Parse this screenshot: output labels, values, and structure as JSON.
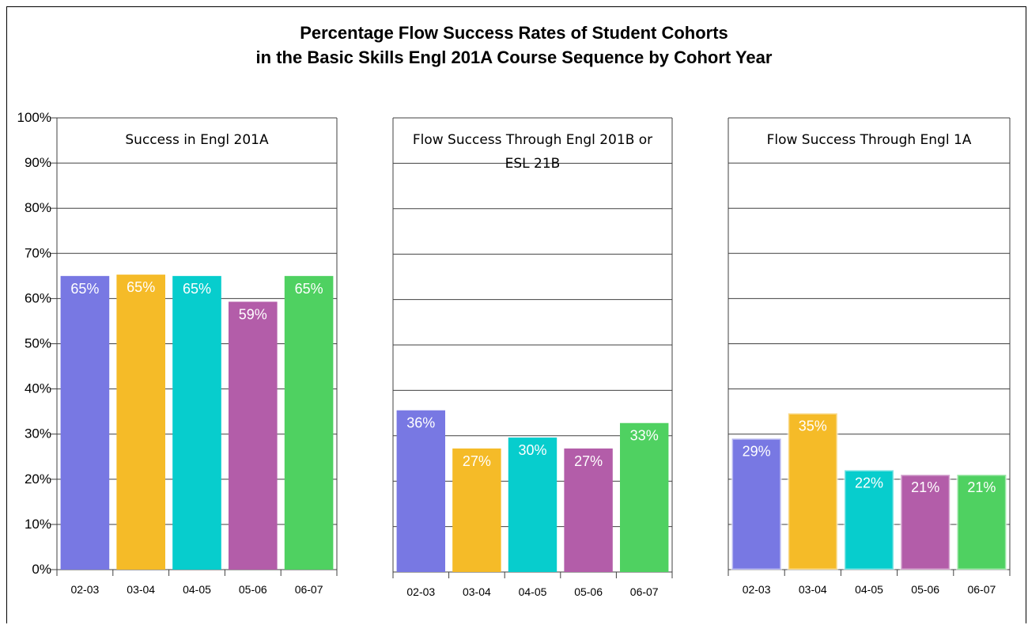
{
  "title": {
    "line1": "Percentage Flow Success Rates of Student Cohorts",
    "line2": "in the Basic Skills Engl 201A Course Sequence by Cohort Year"
  },
  "colors": {
    "02-03": "#7878e3",
    "03-04": "#f5bb28",
    "04-05": "#07cdcd",
    "05-06": "#b35da9",
    "06-07": "#4fd161",
    "grid": "#404040",
    "label_text": "#ffffff"
  },
  "chart_data": [
    {
      "type": "bar",
      "title": "Success in Engl 201A",
      "categories": [
        "02-03",
        "03-04",
        "04-05",
        "05-06",
        "06-07"
      ],
      "values": [
        65,
        65.3,
        65,
        59.3,
        65
      ],
      "value_labels": [
        "65%",
        "65%",
        "65%",
        "59%",
        "65%"
      ],
      "ylim": [
        0,
        100
      ],
      "yticks": [
        "0%",
        "10%",
        "20%",
        "30%",
        "40%",
        "50%",
        "60%",
        "70%",
        "80%",
        "90%",
        "100%"
      ],
      "grid": true
    },
    {
      "type": "bar",
      "title": "Flow Success Through Engl 201B or ESL 21B",
      "categories": [
        "02-03",
        "03-04",
        "04-05",
        "05-06",
        "06-07"
      ],
      "values": [
        35.6,
        27.2,
        29.6,
        27.2,
        32.8
      ],
      "value_labels": [
        "36%",
        "27%",
        "30%",
        "27%",
        "33%"
      ],
      "ylim": [
        0,
        100
      ],
      "grid": true
    },
    {
      "type": "bar",
      "title": "Flow Success Through Engl 1A",
      "categories": [
        "02-03",
        "03-04",
        "04-05",
        "05-06",
        "06-07"
      ],
      "values": [
        29,
        34.6,
        22,
        21,
        21
      ],
      "value_labels": [
        "29%",
        "35%",
        "22%",
        "21%",
        "21%"
      ],
      "ylim": [
        0,
        100
      ],
      "grid": true
    }
  ]
}
